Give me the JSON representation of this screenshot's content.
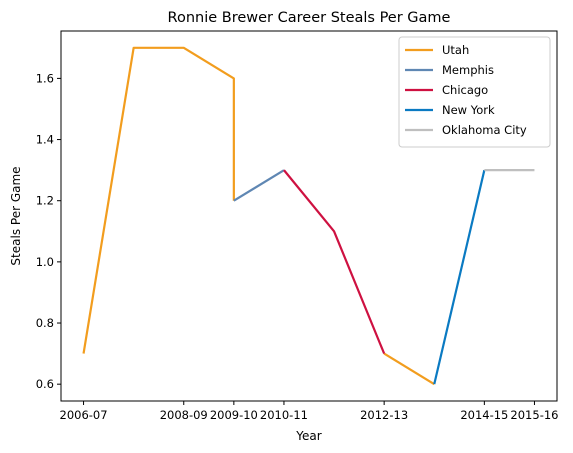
{
  "chart_data": {
    "type": "line",
    "title": "Ronnie Brewer Career Steals Per Game",
    "xlabel": "Year",
    "ylabel": "Steals Per Game",
    "x_tick_labels": [
      "2006-07",
      "2008-09",
      "2009-10",
      "2010-11",
      "2012-13",
      "2014-15",
      "2015-16"
    ],
    "x_tick_positions": [
      0,
      2,
      3,
      4,
      6,
      8,
      9
    ],
    "xlim": [
      -0.45,
      9.45
    ],
    "ylim": [
      0.545,
      1.755
    ],
    "y_ticks": [
      0.6,
      0.8,
      1.0,
      1.2,
      1.4,
      1.6
    ],
    "y_tick_labels": [
      "0.6",
      "0.8",
      "1.0",
      "1.2",
      "1.4",
      "1.6"
    ],
    "grid": false,
    "legend_position": "top-right",
    "series": [
      {
        "name": "Utah",
        "color": "#f29d1e",
        "x": [
          0,
          1,
          2,
          3,
          3
        ],
        "y": [
          0.7,
          1.7,
          1.7,
          1.6,
          1.2
        ]
      },
      {
        "name": "Memphis",
        "color": "#5f87b3",
        "x": [
          3,
          4
        ],
        "y": [
          1.2,
          1.3
        ]
      },
      {
        "name": "Chicago",
        "color": "#ce1141",
        "x": [
          4,
          5,
          6
        ],
        "y": [
          1.3,
          1.1,
          0.7
        ]
      },
      {
        "name": "New York",
        "color": "#0a7ac2",
        "x": [
          7,
          8
        ],
        "y": [
          0.6,
          1.3
        ]
      },
      {
        "name": "Oklahoma City",
        "color": "#bfbfbf",
        "x": [
          8,
          9
        ],
        "y": [
          1.3,
          1.3
        ]
      }
    ],
    "connectors": [
      {
        "color": "#f29d1e",
        "x": [
          6,
          7
        ],
        "y": [
          0.7,
          0.6
        ]
      }
    ]
  }
}
